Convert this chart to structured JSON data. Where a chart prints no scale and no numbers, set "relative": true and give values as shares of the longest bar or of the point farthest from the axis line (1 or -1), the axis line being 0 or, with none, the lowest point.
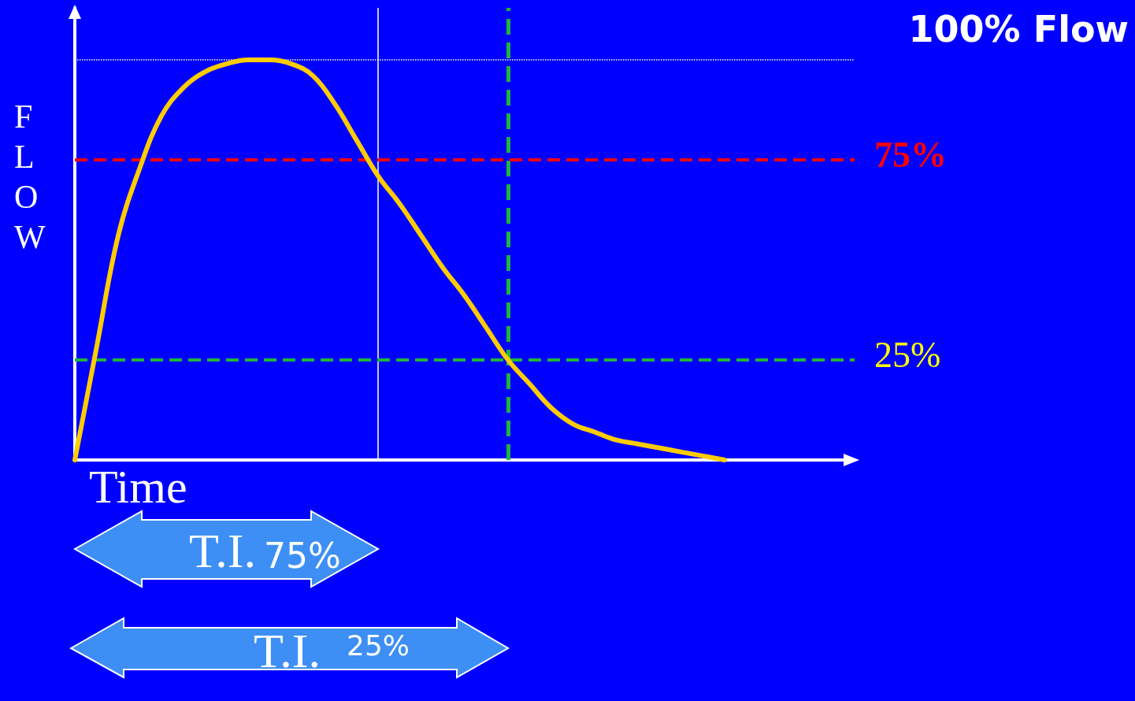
{
  "chart_data": {
    "type": "line",
    "relative": true,
    "xlabel": "Time",
    "ylabel": "FLOW",
    "categories": [
      null,
      null,
      null,
      null,
      null,
      null,
      null,
      null,
      null,
      null,
      null,
      null,
      null,
      null,
      null,
      null,
      null,
      null,
      null,
      null,
      null,
      null,
      null,
      null,
      null,
      null,
      null,
      null,
      null,
      null,
      null,
      null,
      null,
      null,
      null,
      null,
      null
    ],
    "series": [
      {
        "color": "#ffcc00",
        "values": [
          0,
          0.28,
          0.56,
          0.73,
          0.86,
          0.93,
          0.97,
          0.99,
          1.0,
          1.0,
          0.99,
          0.96,
          0.89,
          0.8,
          0.71,
          0.64,
          0.56,
          0.48,
          0.41,
          0.33,
          0.25,
          0.19,
          0.13,
          0.09,
          0.07,
          0.05,
          0.04,
          0.03,
          0.02,
          0.01,
          0,
          null,
          null,
          null,
          null,
          null,
          null
        ]
      }
    ],
    "ref_lines": [
      {
        "axis": "y",
        "value": 1,
        "label": "100% Flow",
        "color": "#ffffff",
        "line_style": "dotted"
      },
      {
        "axis": "y",
        "value": 0.75,
        "label": "75%",
        "color": "#ff0000",
        "line_style": "dashed"
      },
      {
        "axis": "y",
        "value": 0.25,
        "label": "25%",
        "color": "#1fb53a",
        "line_style": "dashed"
      }
    ],
    "annotations": [
      "T.I.",
      "75%",
      "T.I.",
      "25%"
    ],
    "marker": "none",
    "line_style": "solid",
    "grid": false
  }
}
